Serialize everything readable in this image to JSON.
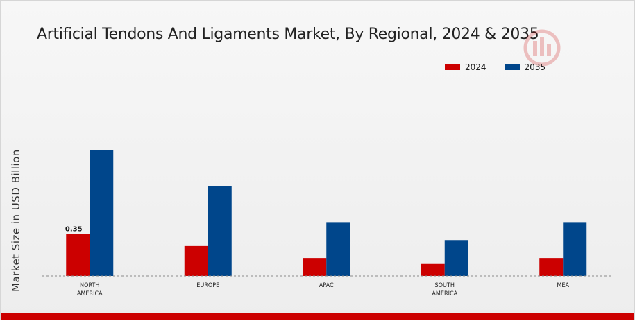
{
  "chart_data": {
    "type": "bar",
    "title": "Artificial Tendons And Ligaments Market, By Regional, 2024 & 2035",
    "ylabel": "Market Size in USD Billion",
    "xlabel": "",
    "categories": [
      [
        "NORTH",
        "AMERICA"
      ],
      [
        "EUROPE"
      ],
      [
        "APAC"
      ],
      [
        "SOUTH",
        "AMERICA"
      ],
      [
        "MEA"
      ]
    ],
    "series": [
      {
        "name": "2024",
        "color": "#cc0000",
        "values": [
          0.35,
          0.25,
          0.15,
          0.1,
          0.15
        ]
      },
      {
        "name": "2035",
        "color": "#00468b",
        "values": [
          1.05,
          0.75,
          0.45,
          0.3,
          0.45
        ]
      }
    ],
    "data_labels": [
      {
        "series": 0,
        "index": 0,
        "text": "0.35"
      }
    ],
    "ylim": [
      0,
      1.2
    ],
    "grid": false,
    "legend": "top-right"
  }
}
